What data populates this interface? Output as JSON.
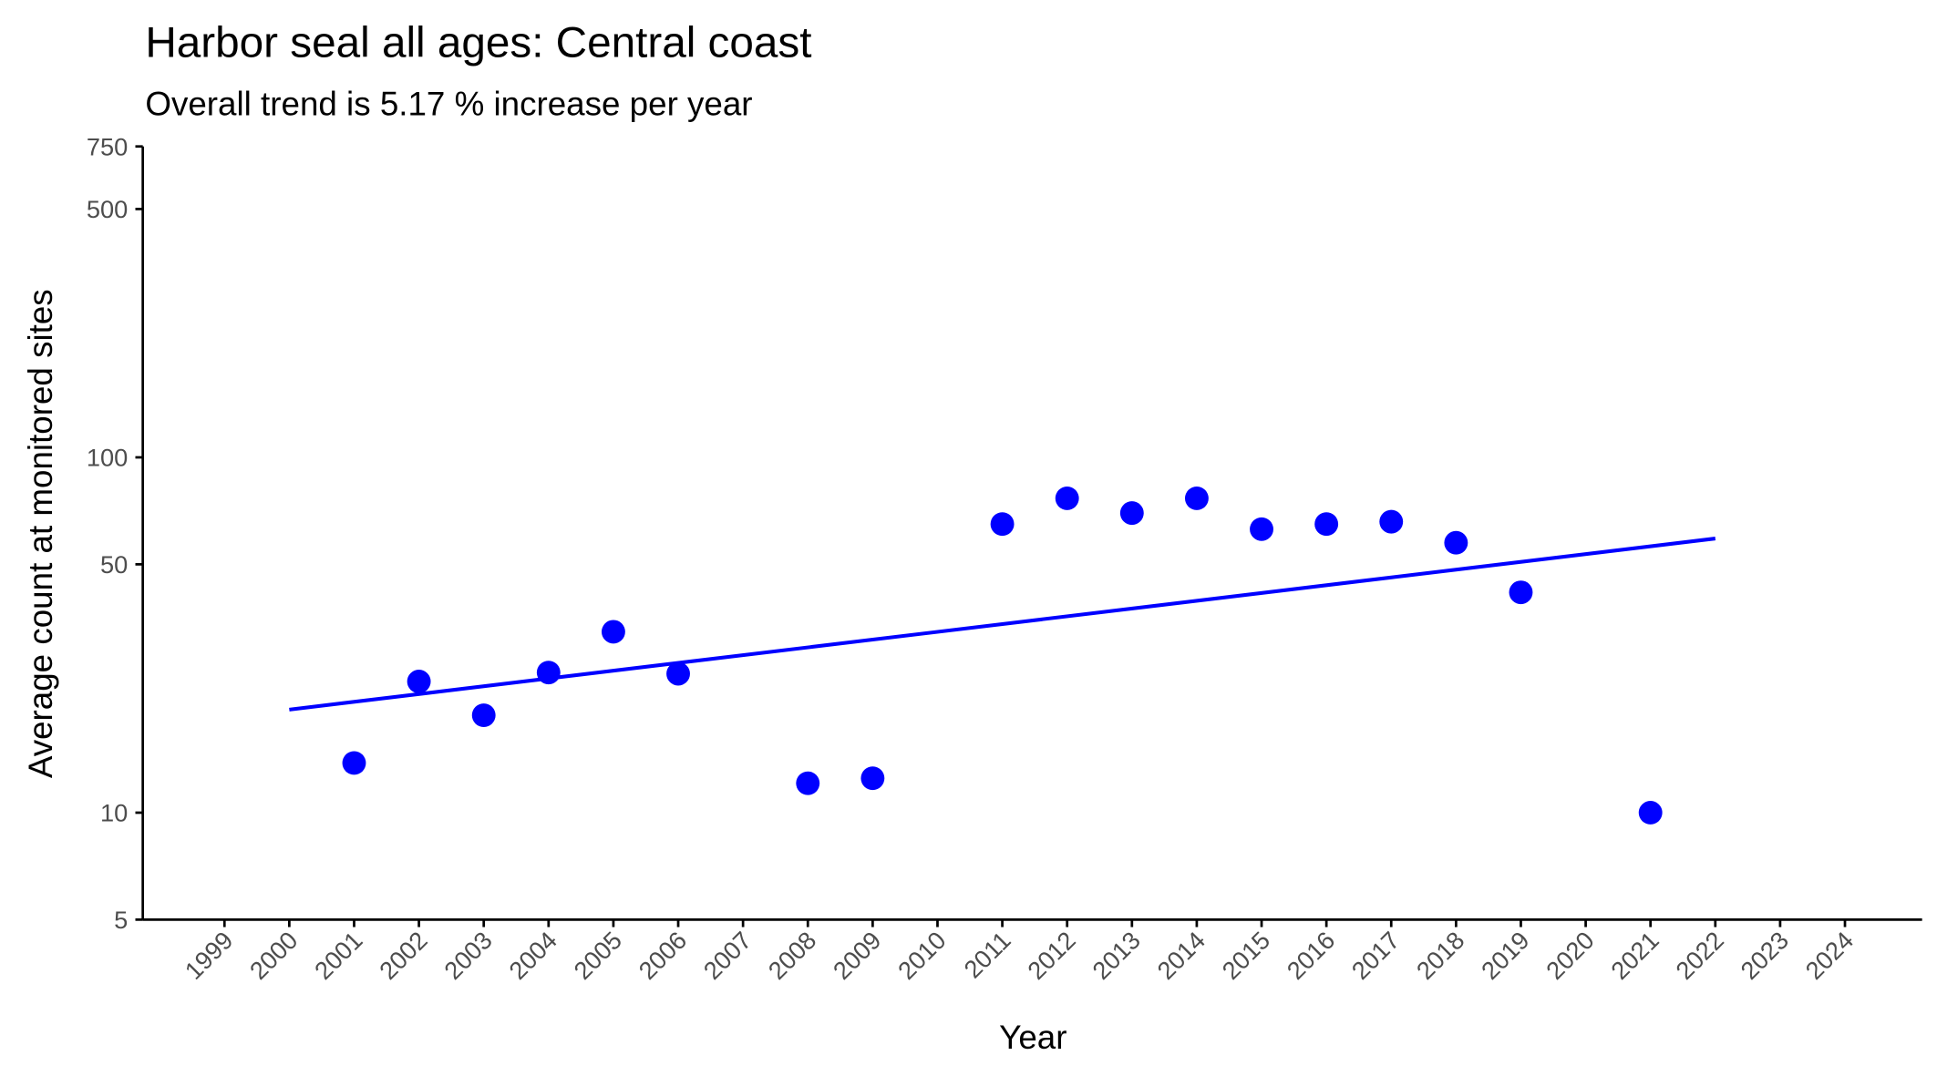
{
  "chart_data": {
    "type": "scatter",
    "title": "Harbor seal all ages: Central coast",
    "subtitle": "Overall trend is 5.17 % increase per year",
    "x_label": "Year",
    "y_label": "Average count at monitored sites",
    "y_log": true,
    "grid": false,
    "series": [
      {
        "type": "scatter",
        "color": "#0000ff",
        "x": [
          2001,
          2002,
          2003,
          2004,
          2005,
          2006,
          2008,
          2009,
          2011,
          2012,
          2013,
          2014,
          2015,
          2016,
          2017,
          2018,
          2019,
          2021
        ],
        "values": [
          13.8,
          23.4,
          18.8,
          24.8,
          32.3,
          24.6,
          12.1,
          12.5,
          64.9,
          76.7,
          69.7,
          76.7,
          62.8,
          64.9,
          65.9,
          57.5,
          41.7,
          10.0
        ]
      },
      {
        "type": "line",
        "color": "#0000ff",
        "x": [
          2000,
          2022
        ],
        "values": [
          19.5,
          59.1
        ]
      }
    ],
    "xlim": [
      1997.74,
      2025.19
    ],
    "xticks": [
      1999,
      2000,
      2001,
      2002,
      2003,
      2004,
      2005,
      2006,
      2007,
      2008,
      2009,
      2010,
      2011,
      2012,
      2013,
      2014,
      2015,
      2016,
      2017,
      2018,
      2019,
      2020,
      2021,
      2022,
      2023,
      2024
    ],
    "ylim": [
      5,
      750
    ],
    "yticks": [
      5,
      10,
      50,
      100,
      500,
      750
    ]
  }
}
